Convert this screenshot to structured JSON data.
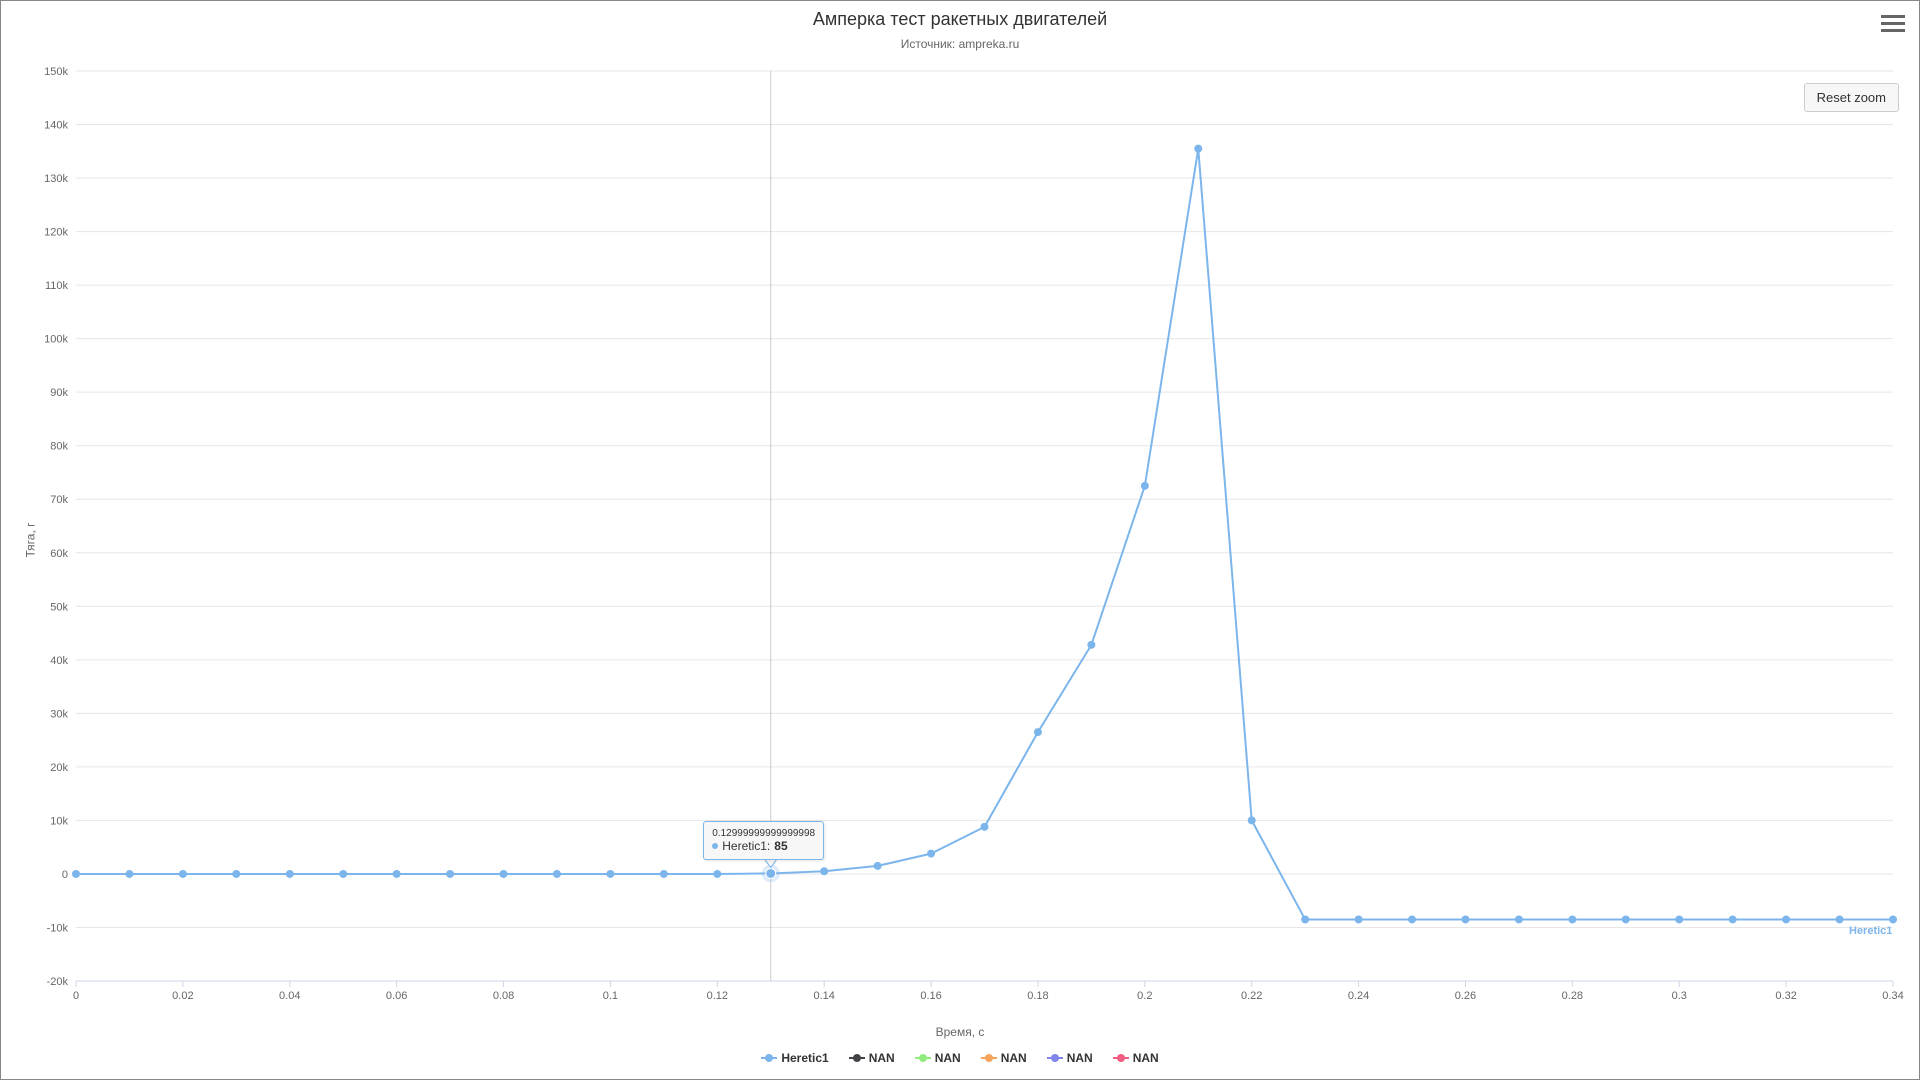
{
  "chart": {
    "type": "line",
    "title": "Амперка тест ракетных двигателей",
    "subtitle": "Источник: ampreka.ru",
    "x_axis": {
      "title": "Время, с",
      "min": 0,
      "max": 0.34,
      "tick_step": 0.02,
      "tick_labels": [
        "0",
        "0.02",
        "0.04",
        "0.06",
        "0.08",
        "0.1",
        "0.12",
        "0.14",
        "0.16",
        "0.18",
        "0.2",
        "0.22",
        "0.24",
        "0.26",
        "0.28",
        "0.3",
        "0.32",
        "0.34"
      ],
      "label_fontsize": 11,
      "label_color": "#666666",
      "line_color": "#ccd6eb"
    },
    "y_axis": {
      "title": "Тяга, г",
      "min": -20000,
      "max": 150000,
      "tick_step": 10000,
      "tick_labels": [
        "-20k",
        "-10k",
        "0",
        "10k",
        "20k",
        "30k",
        "40k",
        "50k",
        "60k",
        "70k",
        "80k",
        "90k",
        "100k",
        "110k",
        "120k",
        "130k",
        "140k",
        "150k"
      ],
      "label_fontsize": 11,
      "label_color": "#666666",
      "grid_color": "#e6e6e6"
    },
    "background_color": "#ffffff",
    "plot_background": "#ffffff",
    "reset_zoom_label": "Reset zoom",
    "series": [
      {
        "name": "Heretic1",
        "color": "#7cb5ec",
        "marker": "circle",
        "line_width": 2,
        "x": [
          0,
          0.01,
          0.02,
          0.03,
          0.04,
          0.05,
          0.06,
          0.07,
          0.08,
          0.09,
          0.1,
          0.11,
          0.12,
          0.13,
          0.14,
          0.15,
          0.16,
          0.17,
          0.18,
          0.19,
          0.2,
          0.21,
          0.22,
          0.23,
          0.24,
          0.25,
          0.26,
          0.27,
          0.28,
          0.29,
          0.3,
          0.31,
          0.32,
          0.33,
          0.34
        ],
        "y": [
          0,
          0,
          0,
          0,
          0,
          0,
          0,
          0,
          0,
          0,
          0,
          0,
          0,
          85,
          500,
          1500,
          3800,
          8800,
          26500,
          42800,
          72500,
          135500,
          10000,
          -8500,
          -8500,
          -8500,
          -8500,
          -8500,
          -8500,
          -8500,
          -8500,
          -8500,
          -8500,
          -8500,
          -8500
        ]
      },
      {
        "name": "NAN",
        "color": "#434348",
        "marker": "diamond",
        "line_width": 2,
        "x": [],
        "y": []
      },
      {
        "name": "NAN",
        "color": "#90ed7d",
        "marker": "square",
        "line_width": 2,
        "x": [],
        "y": []
      },
      {
        "name": "NAN",
        "color": "#f7a35c",
        "marker": "triangle",
        "line_width": 2,
        "x": [],
        "y": []
      },
      {
        "name": "NAN",
        "color": "#8085e9",
        "marker": "triangle-down",
        "line_width": 2,
        "x": [],
        "y": []
      },
      {
        "name": "NAN",
        "color": "#f15c80",
        "marker": "circle",
        "line_width": 2,
        "x": [],
        "y": []
      }
    ],
    "tooltip": {
      "x_label": "0.12999999999999998",
      "series_name": "Heretic1",
      "value": "85",
      "x_value": 0.13,
      "color": "#7cb5ec"
    },
    "series_end_label": "Heretic1",
    "series_end_label_color": "#7cb5ec"
  }
}
